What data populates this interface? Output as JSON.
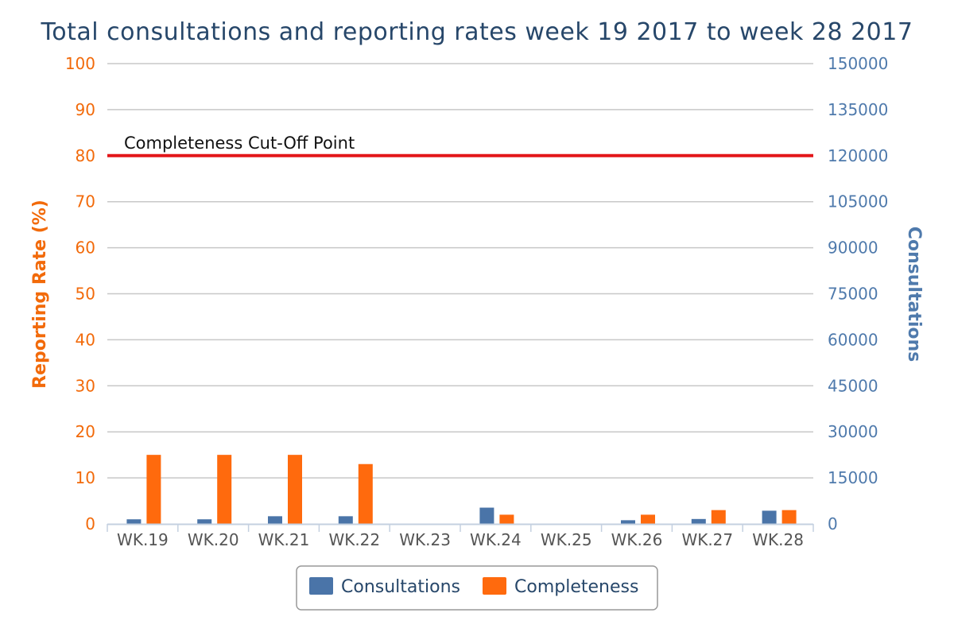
{
  "chart_data": {
    "type": "bar",
    "title": "Total consultations and reporting rates week 19 2017 to week 28 2017",
    "categories": [
      "WK.19",
      "WK.20",
      "WK.21",
      "WK.22",
      "WK.23",
      "WK.24",
      "WK.25",
      "WK.26",
      "WK.27",
      "WK.28"
    ],
    "y_left": {
      "label": "Reporting Rate (%)",
      "range": [
        0,
        100
      ],
      "ticks": [
        "0",
        "10",
        "20",
        "30",
        "40",
        "50",
        "60",
        "70",
        "80",
        "90",
        "100"
      ],
      "color": "#f26a0a"
    },
    "y_right": {
      "label": "Consultations",
      "range": [
        0,
        150000
      ],
      "ticks": [
        "0",
        "15000",
        "30000",
        "45000",
        "60000",
        "75000",
        "90000",
        "105000",
        "120000",
        "135000",
        "150000"
      ],
      "color": "#4f7aac"
    },
    "series": [
      {
        "name": "Consultations",
        "axis": "right",
        "color": "#4a74a8",
        "values": [
          1500,
          1500,
          2500,
          2500,
          0,
          5300,
          0,
          1200,
          1600,
          4300
        ]
      },
      {
        "name": "Completeness",
        "axis": "left",
        "color": "#ff6a0d",
        "values": [
          15,
          15,
          15,
          13,
          0,
          2,
          0,
          2,
          3,
          3
        ]
      }
    ],
    "plot_line": {
      "label": "Completeness Cut-Off Point",
      "value": 80,
      "axis": "left",
      "color": "#e3161a"
    },
    "grid": true,
    "legend_position": "bottom-center"
  }
}
